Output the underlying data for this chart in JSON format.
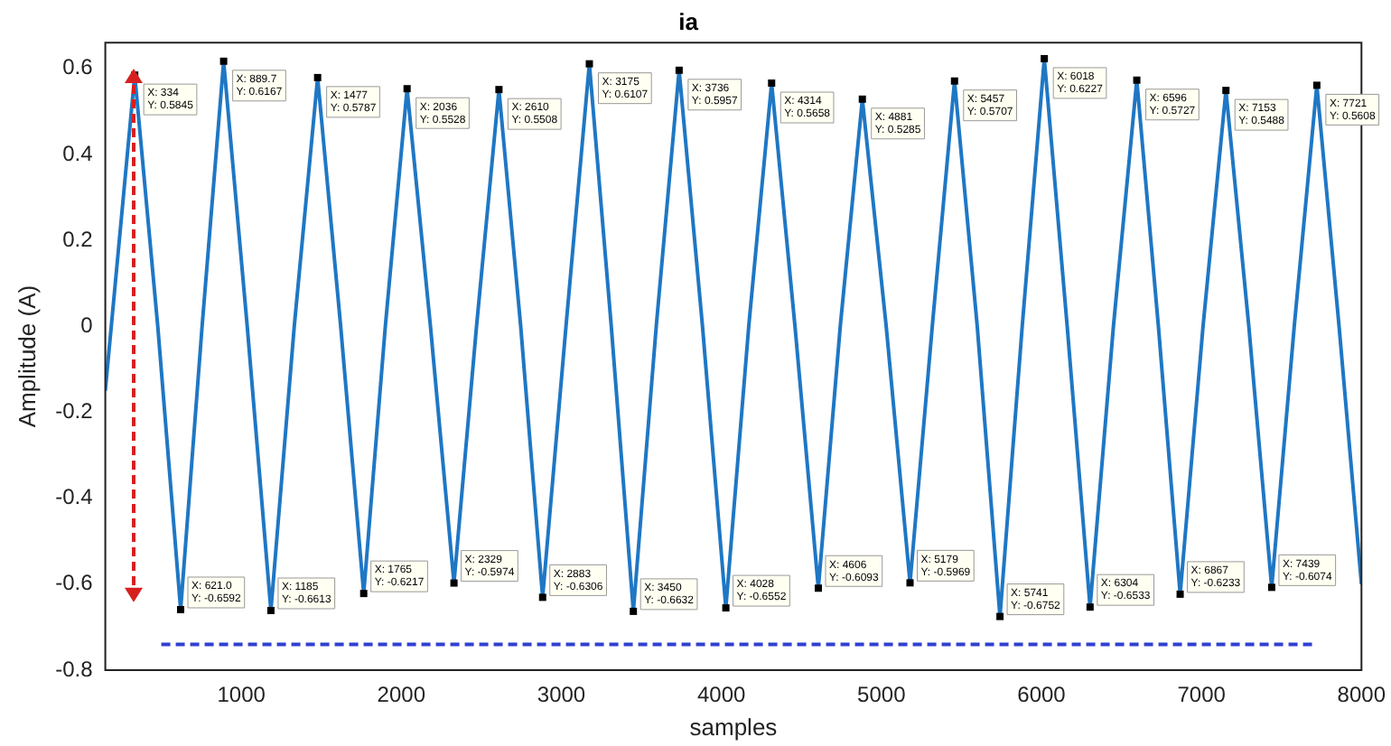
{
  "chart_data": {
    "type": "line",
    "title": "ia",
    "xlabel": "samples",
    "ylabel": "Amplitude (A)",
    "xlim": [
      150,
      8000
    ],
    "xticks": [
      1000,
      2000,
      3000,
      4000,
      5000,
      6000,
      7000,
      8000
    ],
    "ylim": [
      -0.8,
      0.66
    ],
    "yticks": [
      -0.8,
      -0.6,
      -0.4,
      -0.2,
      0,
      0.2,
      0.4,
      0.6
    ],
    "grid": false,
    "legend": false,
    "marker": "none",
    "series": [
      {
        "color": "#1f77c4",
        "line_style": "solid",
        "x": [
          150,
          334,
          478,
          621,
          755,
          889.7,
          1037,
          1185,
          1331,
          1477,
          1621,
          1765,
          1900,
          2036,
          2182,
          2329,
          2470,
          2610,
          2746,
          2883,
          3029,
          3175,
          3312,
          3450,
          3593,
          3736,
          3882,
          4028,
          4171,
          4314,
          4460,
          4606,
          4743,
          4881,
          5030,
          5179,
          5318,
          5457,
          5599,
          5741,
          5880,
          6018,
          6161,
          6304,
          6450,
          6596,
          6731,
          6867,
          7010,
          7153,
          7296,
          7439,
          7580,
          7721,
          7860,
          8000
        ],
        "values": [
          -0.15,
          0.5845,
          0,
          -0.6592,
          0,
          0.6167,
          0,
          -0.6613,
          0,
          0.5787,
          0,
          -0.6217,
          0,
          0.5528,
          0,
          -0.5974,
          0,
          0.5508,
          0,
          -0.6306,
          0,
          0.6107,
          0,
          -0.6632,
          0,
          0.5957,
          0,
          -0.6552,
          0,
          0.5658,
          0,
          -0.6093,
          0,
          0.5285,
          0,
          -0.5969,
          0,
          0.5707,
          0,
          -0.6752,
          0,
          0.6227,
          0,
          -0.6533,
          0,
          0.5727,
          0,
          -0.6233,
          0,
          0.5488,
          0,
          -0.6074,
          0,
          0.5608,
          0,
          -0.6
        ]
      },
      {
        "color": "#3040d0",
        "line_style": "dashed",
        "x": [
          500,
          7700
        ],
        "values": [
          -0.74,
          -0.74
        ]
      }
    ],
    "annotations": [
      {
        "text": "X: 334\nY: 0.5845",
        "x": 334,
        "y": 0.5845
      },
      {
        "text": "X: 889.7\nY: 0.6167",
        "x": 889.7,
        "y": 0.6167
      },
      {
        "text": "X: 1477\nY: 0.5787",
        "x": 1477,
        "y": 0.5787
      },
      {
        "text": "X: 2036\nY: 0.5528",
        "x": 2036,
        "y": 0.5528
      },
      {
        "text": "X: 2610\nY: 0.5508",
        "x": 2610,
        "y": 0.5508
      },
      {
        "text": "X: 3175\nY: 0.6107",
        "x": 3175,
        "y": 0.6107
      },
      {
        "text": "X: 3736\nY: 0.5957",
        "x": 3736,
        "y": 0.5957
      },
      {
        "text": "X: 4314\nY: 0.5658",
        "x": 4314,
        "y": 0.5658
      },
      {
        "text": "X: 4881\nY: 0.5285",
        "x": 4881,
        "y": 0.5285
      },
      {
        "text": "X: 5457\nY: 0.5707",
        "x": 5457,
        "y": 0.5707
      },
      {
        "text": "X: 6018\nY: 0.6227",
        "x": 6018,
        "y": 0.6227
      },
      {
        "text": "X: 6596\nY: 0.5727",
        "x": 6596,
        "y": 0.5727
      },
      {
        "text": "X: 7153\nY: 0.5488",
        "x": 7153,
        "y": 0.5488
      },
      {
        "text": "X: 7721\nY: 0.5608",
        "x": 7721,
        "y": 0.5608
      },
      {
        "text": "X: 621.0\nY: -0.6592",
        "x": 621,
        "y": -0.6592
      },
      {
        "text": "X: 1185\nY: -0.6613",
        "x": 1185,
        "y": -0.6613
      },
      {
        "text": "X: 1765\nY: -0.6217",
        "x": 1765,
        "y": -0.6217
      },
      {
        "text": "X: 2329\nY: -0.5974",
        "x": 2329,
        "y": -0.5974
      },
      {
        "text": "X: 2883\nY: -0.6306",
        "x": 2883,
        "y": -0.6306
      },
      {
        "text": "X: 3450\nY: -0.6632",
        "x": 3450,
        "y": -0.6632
      },
      {
        "text": "X: 4028\nY: -0.6552",
        "x": 4028,
        "y": -0.6552
      },
      {
        "text": "X: 4606\nY: -0.6093",
        "x": 4606,
        "y": -0.6093
      },
      {
        "text": "X: 5179\nY: -0.5969",
        "x": 5179,
        "y": -0.5969
      },
      {
        "text": "X: 5741\nY: -0.6752",
        "x": 5741,
        "y": -0.6752
      },
      {
        "text": "X: 6304\nY: -0.6533",
        "x": 6304,
        "y": -0.6533
      },
      {
        "text": "X: 6867\nY: -0.6233",
        "x": 6867,
        "y": -0.6233
      },
      {
        "text": "X: 7439\nY: -0.6074",
        "x": 7439,
        "y": -0.6074
      }
    ]
  }
}
